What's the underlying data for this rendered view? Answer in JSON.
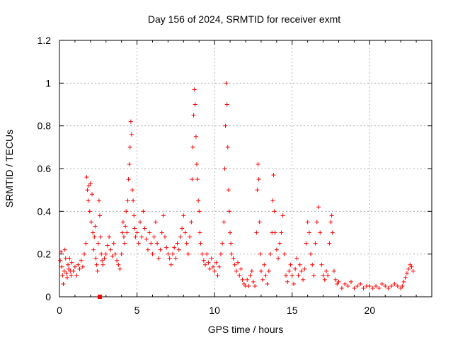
{
  "chart_data": {
    "type": "scatter",
    "title": "Day 156 of 2024, SRMTID for receiver exmt",
    "xlabel": "GPS time / hours",
    "ylabel": "SRMTID / TECUs",
    "xlim": [
      0,
      24
    ],
    "ylim": [
      0,
      1.2
    ],
    "x_ticks": [
      0,
      5,
      10,
      15,
      20
    ],
    "x_tick_labels": [
      "0",
      "5",
      "10",
      "15",
      "20"
    ],
    "y_ticks": [
      0,
      0.2,
      0.4,
      0.6,
      0.8,
      1.0,
      1.2
    ],
    "y_tick_labels": [
      "0",
      "0.2",
      "0.4",
      "0.6",
      "0.8",
      "1",
      "1.2"
    ],
    "grid": true,
    "marker": "+",
    "series": [
      {
        "name": "SRMTID",
        "color": "#ff0000",
        "values": [
          [
            0.05,
            0.17
          ],
          [
            0.1,
            0.21
          ],
          [
            0.15,
            0.14
          ],
          [
            0.2,
            0.1
          ],
          [
            0.25,
            0.06
          ],
          [
            0.3,
            0.12
          ],
          [
            0.35,
            0.22
          ],
          [
            0.4,
            0.18
          ],
          [
            0.45,
            0.11
          ],
          [
            0.5,
            0.09
          ],
          [
            0.55,
            0.15
          ],
          [
            0.6,
            0.13
          ],
          [
            0.65,
            0.18
          ],
          [
            0.7,
            0.12
          ],
          [
            0.75,
            0.1
          ],
          [
            0.8,
            0.16
          ],
          [
            0.9,
            0.12
          ],
          [
            1.0,
            0.14
          ],
          [
            1.1,
            0.1
          ],
          [
            1.2,
            0.15
          ],
          [
            1.3,
            0.13
          ],
          [
            1.4,
            0.17
          ],
          [
            1.5,
            0.14
          ],
          [
            1.6,
            0.2
          ],
          [
            1.7,
            0.25
          ],
          [
            1.75,
            0.56
          ],
          [
            1.8,
            0.5
          ],
          [
            1.85,
            0.45
          ],
          [
            1.9,
            0.52
          ],
          [
            1.95,
            0.4
          ],
          [
            2.0,
            0.53
          ],
          [
            2.05,
            0.35
          ],
          [
            2.1,
            0.48
          ],
          [
            2.15,
            0.3
          ],
          [
            2.2,
            0.22
          ],
          [
            2.25,
            0.28
          ],
          [
            2.3,
            0.33
          ],
          [
            2.35,
            0.18
          ],
          [
            2.4,
            0.15
          ],
          [
            2.45,
            0.12
          ],
          [
            2.5,
            0.25
          ],
          [
            2.55,
            0.45
          ],
          [
            2.6,
            0.38
          ],
          [
            2.65,
            0.28
          ],
          [
            2.7,
            0.2
          ],
          [
            2.75,
            0.17
          ],
          [
            2.8,
            0.15
          ],
          [
            2.9,
            0.18
          ],
          [
            3.0,
            0.2
          ],
          [
            3.1,
            0.24
          ],
          [
            3.2,
            0.28
          ],
          [
            3.3,
            0.22
          ],
          [
            3.4,
            0.19
          ],
          [
            3.5,
            0.25
          ],
          [
            3.6,
            0.2
          ],
          [
            3.7,
            0.17
          ],
          [
            3.8,
            0.15
          ],
          [
            3.9,
            0.13
          ],
          [
            4.0,
            0.2
          ],
          [
            4.05,
            0.3
          ],
          [
            4.1,
            0.35
          ],
          [
            4.15,
            0.28
          ],
          [
            4.2,
            0.25
          ],
          [
            4.25,
            0.33
          ],
          [
            4.3,
            0.4
          ],
          [
            4.35,
            0.3
          ],
          [
            4.4,
            0.45
          ],
          [
            4.45,
            0.55
          ],
          [
            4.5,
            0.62
          ],
          [
            4.55,
            0.7
          ],
          [
            4.6,
            0.82
          ],
          [
            4.65,
            0.76
          ],
          [
            4.7,
            0.5
          ],
          [
            4.75,
            0.45
          ],
          [
            4.8,
            0.38
          ],
          [
            4.85,
            0.32
          ],
          [
            4.9,
            0.28
          ],
          [
            5.0,
            0.3
          ],
          [
            5.1,
            0.25
          ],
          [
            5.2,
            0.35
          ],
          [
            5.3,
            0.28
          ],
          [
            5.4,
            0.4
          ],
          [
            5.5,
            0.32
          ],
          [
            5.6,
            0.27
          ],
          [
            5.7,
            0.22
          ],
          [
            5.8,
            0.3
          ],
          [
            5.9,
            0.25
          ],
          [
            6.0,
            0.2
          ],
          [
            6.1,
            0.28
          ],
          [
            6.2,
            0.35
          ],
          [
            6.3,
            0.25
          ],
          [
            6.4,
            0.18
          ],
          [
            6.5,
            0.22
          ],
          [
            6.6,
            0.3
          ],
          [
            6.7,
            0.38
          ],
          [
            6.8,
            0.28
          ],
          [
            6.9,
            0.23
          ],
          [
            7.0,
            0.2
          ],
          [
            7.1,
            0.18
          ],
          [
            7.2,
            0.15
          ],
          [
            7.3,
            0.2
          ],
          [
            7.4,
            0.23
          ],
          [
            7.5,
            0.18
          ],
          [
            7.6,
            0.25
          ],
          [
            7.7,
            0.22
          ],
          [
            7.8,
            0.28
          ],
          [
            7.9,
            0.32
          ],
          [
            8.0,
            0.38
          ],
          [
            8.1,
            0.3
          ],
          [
            8.2,
            0.25
          ],
          [
            8.3,
            0.2
          ],
          [
            8.4,
            0.28
          ],
          [
            8.5,
            0.35
          ],
          [
            8.55,
            0.55
          ],
          [
            8.6,
            0.7
          ],
          [
            8.65,
            0.85
          ],
          [
            8.7,
            0.97
          ],
          [
            8.75,
            0.9
          ],
          [
            8.8,
            0.75
          ],
          [
            8.85,
            0.62
          ],
          [
            8.9,
            0.55
          ],
          [
            8.95,
            0.45
          ],
          [
            9.0,
            0.4
          ],
          [
            9.05,
            0.3
          ],
          [
            9.1,
            0.25
          ],
          [
            9.2,
            0.2
          ],
          [
            9.3,
            0.17
          ],
          [
            9.4,
            0.15
          ],
          [
            9.5,
            0.2
          ],
          [
            9.6,
            0.16
          ],
          [
            9.7,
            0.13
          ],
          [
            9.8,
            0.18
          ],
          [
            9.9,
            0.14
          ],
          [
            10.0,
            0.12
          ],
          [
            10.1,
            0.16
          ],
          [
            10.2,
            0.1
          ],
          [
            10.3,
            0.14
          ],
          [
            10.4,
            0.2
          ],
          [
            10.5,
            0.25
          ],
          [
            10.6,
            0.35
          ],
          [
            10.65,
            0.6
          ],
          [
            10.7,
            0.8
          ],
          [
            10.75,
            1.0
          ],
          [
            10.8,
            0.9
          ],
          [
            10.85,
            0.7
          ],
          [
            10.9,
            0.5
          ],
          [
            10.95,
            0.4
          ],
          [
            11.0,
            0.3
          ],
          [
            11.05,
            0.25
          ],
          [
            11.1,
            0.2
          ],
          [
            11.2,
            0.18
          ],
          [
            11.3,
            0.15
          ],
          [
            11.4,
            0.12
          ],
          [
            11.5,
            0.16
          ],
          [
            11.6,
            0.1
          ],
          [
            11.7,
            0.13
          ],
          [
            11.8,
            0.08
          ],
          [
            11.9,
            0.06
          ],
          [
            12.0,
            0.05
          ],
          [
            12.1,
            0.08
          ],
          [
            12.2,
            0.05
          ],
          [
            12.3,
            0.1
          ],
          [
            12.4,
            0.12
          ],
          [
            12.5,
            0.07
          ],
          [
            12.6,
            0.05
          ],
          [
            12.7,
            0.3
          ],
          [
            12.75,
            0.5
          ],
          [
            12.8,
            0.62
          ],
          [
            12.85,
            0.55
          ],
          [
            12.9,
            0.35
          ],
          [
            12.95,
            0.2
          ],
          [
            13.0,
            0.12
          ],
          [
            13.1,
            0.08
          ],
          [
            13.2,
            0.15
          ],
          [
            13.3,
            0.1
          ],
          [
            13.4,
            0.06
          ],
          [
            13.5,
            0.12
          ],
          [
            13.6,
            0.2
          ],
          [
            13.7,
            0.3
          ],
          [
            13.75,
            0.45
          ],
          [
            13.8,
            0.57
          ],
          [
            13.85,
            0.4
          ],
          [
            13.9,
            0.3
          ],
          [
            14.0,
            0.22
          ],
          [
            14.1,
            0.18
          ],
          [
            14.2,
            0.25
          ],
          [
            14.3,
            0.3
          ],
          [
            14.4,
            0.38
          ],
          [
            14.5,
            0.2
          ],
          [
            14.6,
            0.1
          ],
          [
            14.7,
            0.07
          ],
          [
            14.8,
            0.12
          ],
          [
            14.9,
            0.15
          ],
          [
            15.0,
            0.1
          ],
          [
            15.1,
            0.06
          ],
          [
            15.2,
            0.13
          ],
          [
            15.3,
            0.18
          ],
          [
            15.4,
            0.1
          ],
          [
            15.5,
            0.15
          ],
          [
            15.6,
            0.12
          ],
          [
            15.7,
            0.08
          ],
          [
            15.8,
            0.13
          ],
          [
            15.9,
            0.25
          ],
          [
            16.0,
            0.35
          ],
          [
            16.1,
            0.3
          ],
          [
            16.2,
            0.2
          ],
          [
            16.3,
            0.15
          ],
          [
            16.4,
            0.1
          ],
          [
            16.5,
            0.25
          ],
          [
            16.6,
            0.35
          ],
          [
            16.7,
            0.42
          ],
          [
            16.8,
            0.3
          ],
          [
            16.9,
            0.15
          ],
          [
            17.0,
            0.1
          ],
          [
            17.1,
            0.08
          ],
          [
            17.2,
            0.12
          ],
          [
            17.3,
            0.1
          ],
          [
            17.4,
            0.25
          ],
          [
            17.5,
            0.35
          ],
          [
            17.55,
            0.38
          ],
          [
            17.6,
            0.3
          ],
          [
            17.7,
            0.12
          ],
          [
            17.8,
            0.08
          ],
          [
            17.9,
            0.06
          ],
          [
            18.0,
            0.07
          ],
          [
            18.2,
            0.04
          ],
          [
            18.4,
            0.06
          ],
          [
            18.6,
            0.05
          ],
          [
            18.8,
            0.07
          ],
          [
            19.0,
            0.04
          ],
          [
            19.2,
            0.05
          ],
          [
            19.4,
            0.06
          ],
          [
            19.6,
            0.04
          ],
          [
            19.8,
            0.05
          ],
          [
            20.0,
            0.05
          ],
          [
            20.2,
            0.04
          ],
          [
            20.4,
            0.05
          ],
          [
            20.6,
            0.04
          ],
          [
            20.8,
            0.06
          ],
          [
            21.0,
            0.05
          ],
          [
            21.2,
            0.04
          ],
          [
            21.4,
            0.05
          ],
          [
            21.6,
            0.06
          ],
          [
            21.8,
            0.05
          ],
          [
            22.0,
            0.04
          ],
          [
            22.1,
            0.05
          ],
          [
            22.2,
            0.07
          ],
          [
            22.3,
            0.09
          ],
          [
            22.4,
            0.11
          ],
          [
            22.5,
            0.13
          ],
          [
            22.6,
            0.15
          ],
          [
            22.7,
            0.14
          ],
          [
            22.8,
            0.12
          ]
        ]
      }
    ],
    "outlier": {
      "x": 2.6,
      "y": 0.0
    }
  }
}
